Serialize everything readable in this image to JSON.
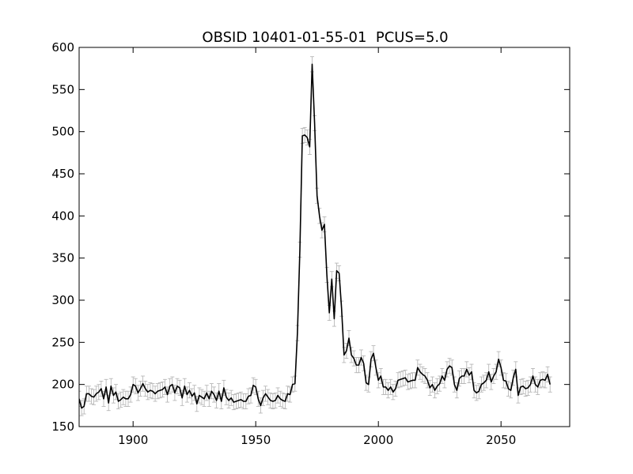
{
  "chart_data": {
    "type": "line",
    "title": "OBSID 10401-01-55-01  PCUS=5.0",
    "xlabel": "",
    "ylabel": "",
    "xlim": [
      1878,
      2078
    ],
    "ylim": [
      150,
      600
    ],
    "xticks": [
      1900,
      1950,
      2000,
      2050
    ],
    "yticks": [
      150,
      200,
      250,
      300,
      350,
      400,
      450,
      500,
      550,
      600
    ],
    "grid": false,
    "line_color": "#000000",
    "errorbar_color": "#b0b0b0",
    "error_bar_halfwidth": 9,
    "x_start": 1878,
    "x_step": 1,
    "y": [
      183,
      172,
      174,
      189,
      189,
      186,
      185,
      189,
      191,
      195,
      183,
      197,
      178,
      198,
      187,
      191,
      180,
      182,
      185,
      183,
      183,
      188,
      200,
      198,
      190,
      195,
      201,
      195,
      191,
      193,
      192,
      189,
      192,
      193,
      194,
      197,
      188,
      198,
      200,
      190,
      198,
      196,
      184,
      198,
      188,
      193,
      186,
      190,
      177,
      187,
      185,
      183,
      190,
      183,
      192,
      188,
      181,
      192,
      180,
      196,
      185,
      181,
      184,
      179,
      180,
      181,
      182,
      180,
      180,
      186,
      187,
      199,
      197,
      183,
      175,
      184,
      189,
      185,
      181,
      180,
      181,
      187,
      183,
      181,
      180,
      189,
      188,
      200,
      201,
      261,
      360,
      495,
      496,
      493,
      482,
      580,
      510,
      424,
      400,
      383,
      390,
      330,
      285,
      325,
      278,
      335,
      332,
      290,
      235,
      240,
      255,
      235,
      231,
      223,
      223,
      232,
      225,
      202,
      200,
      230,
      237,
      220,
      205,
      210,
      197,
      197,
      193,
      197,
      191,
      195,
      205,
      206,
      207,
      208,
      203,
      204,
      205,
      205,
      220,
      215,
      212,
      210,
      205,
      196,
      200,
      193,
      198,
      201,
      210,
      205,
      218,
      222,
      220,
      200,
      193,
      207,
      210,
      210,
      218,
      211,
      215,
      193,
      190,
      192,
      200,
      202,
      205,
      215,
      203,
      210,
      215,
      230,
      220,
      205,
      204,
      195,
      193,
      208,
      218,
      187,
      197,
      198,
      195,
      196,
      200,
      210,
      200,
      197,
      205,
      206,
      205,
      212,
      200
    ]
  }
}
